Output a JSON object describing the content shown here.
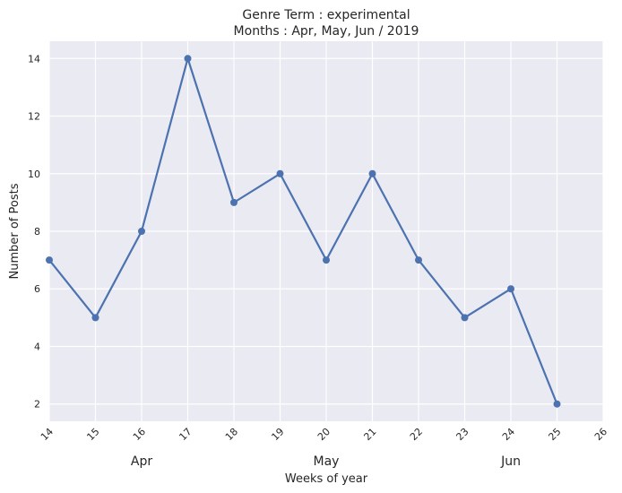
{
  "chart_data": {
    "type": "line",
    "title": "Genre Term : experimental",
    "subtitle": "Months : Apr, May, Jun / 2019",
    "xlabel": "Weeks of year",
    "ylabel": "Number of Posts",
    "x_ticks": [
      "14",
      "15",
      "16",
      "17",
      "18",
      "19",
      "20",
      "21",
      "22",
      "23",
      "24",
      "25",
      "26"
    ],
    "xlim": [
      14,
      26
    ],
    "y_ticks": [
      "2",
      "4",
      "6",
      "8",
      "10",
      "12",
      "14"
    ],
    "ylim": [
      1.4,
      14.6
    ],
    "month_labels": [
      {
        "label": "Apr",
        "week": 16
      },
      {
        "label": "May",
        "week": 20
      },
      {
        "label": "Jun",
        "week": 24
      }
    ],
    "grid": true,
    "series": [
      {
        "x": [
          14,
          15,
          16,
          17,
          18,
          19,
          20,
          21,
          22,
          23,
          24,
          25
        ],
        "values": [
          7,
          5,
          8,
          14,
          9,
          10,
          7,
          10,
          7,
          5,
          6,
          2
        ],
        "color": "#4c72b0"
      }
    ],
    "colors": {
      "plot_bg": "#eaeaf2",
      "grid": "#ffffff"
    }
  }
}
